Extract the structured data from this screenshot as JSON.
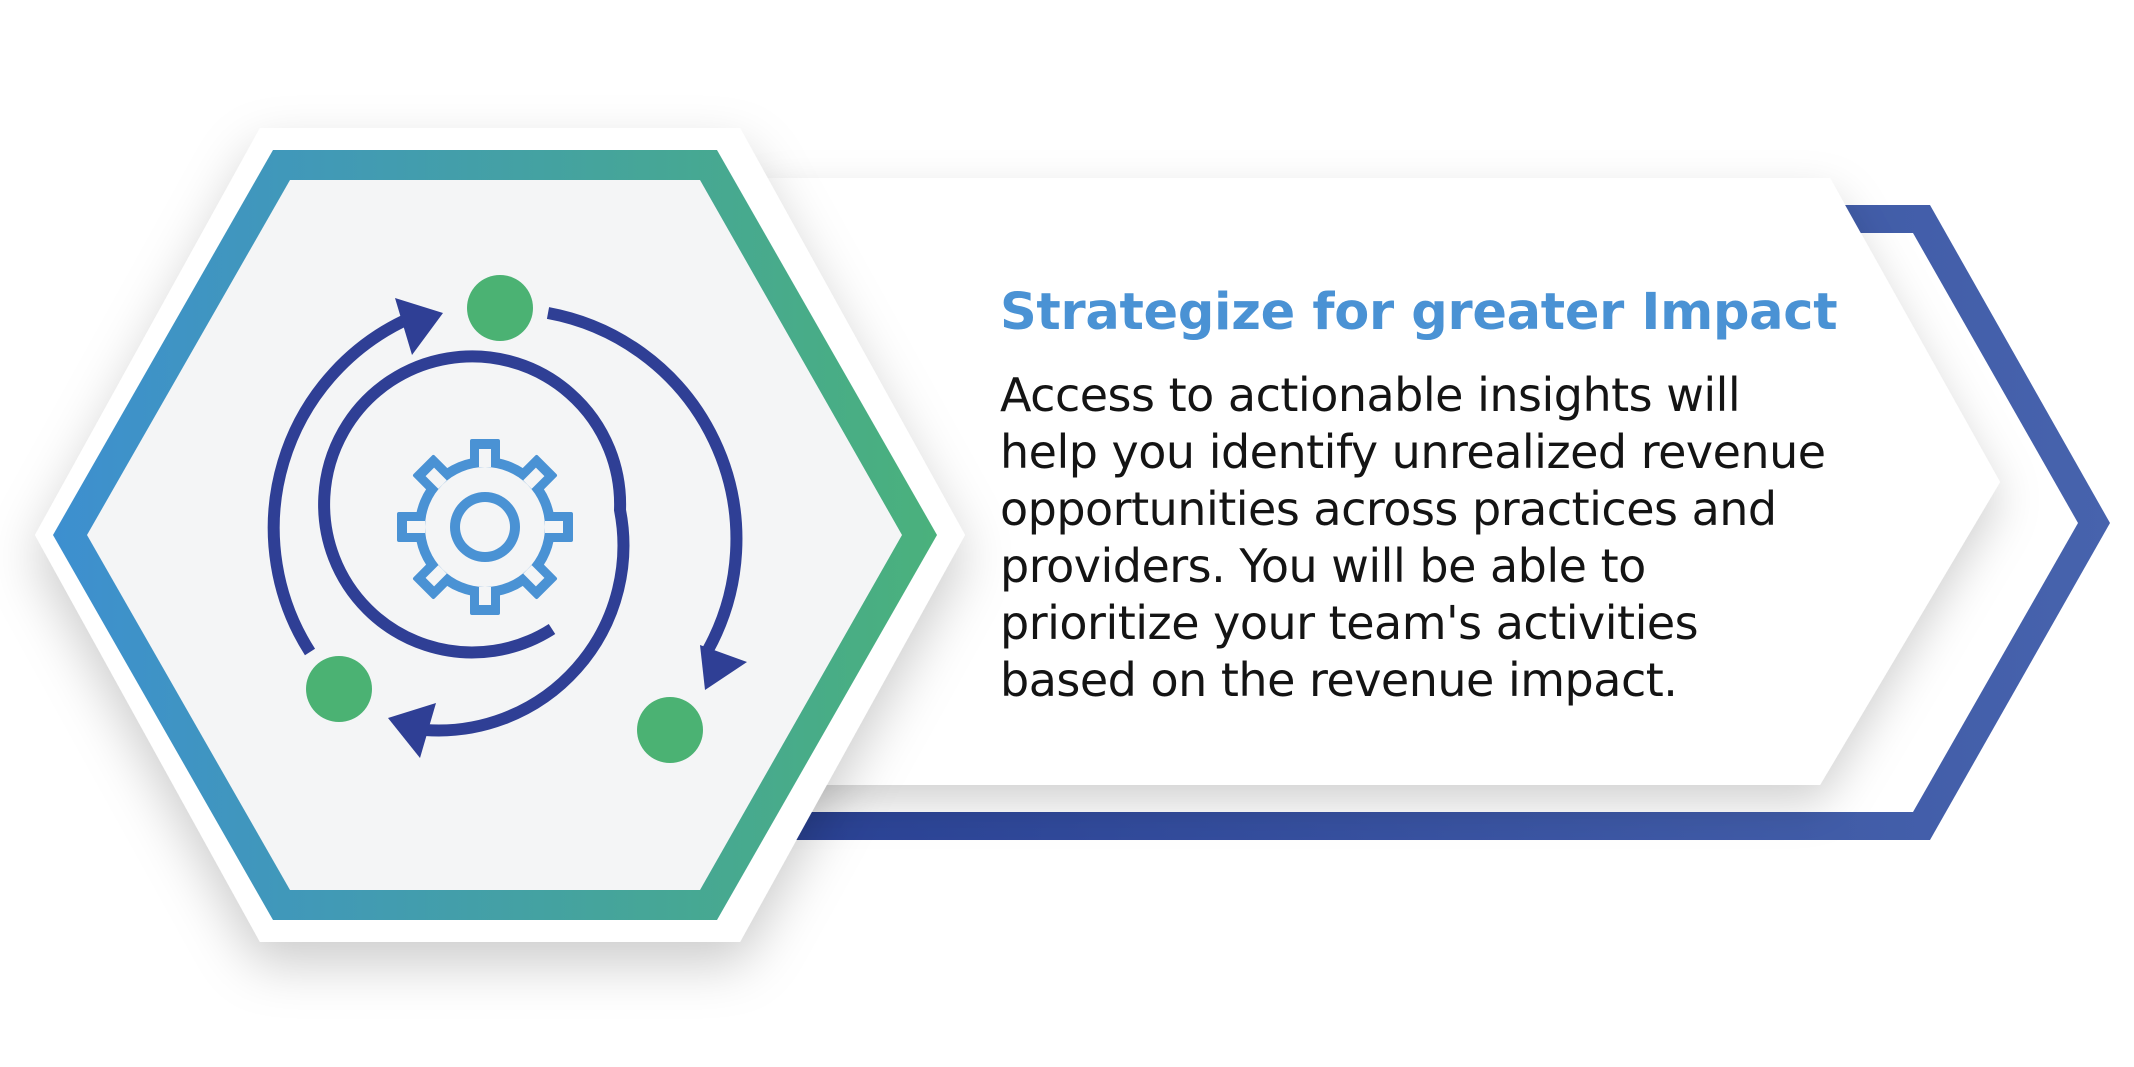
{
  "heading": "Strategize for greater Impact",
  "body_lines": [
    "Access to actionable insights will",
    "help you identify unrealized revenue",
    "opportunities across practices and",
    "providers. You will be able to",
    "prioritize your team's activities",
    "based on the revenue impact."
  ],
  "icons": {
    "main": "cycle-arrows-gear-icon"
  },
  "colors": {
    "heading": "#4a92d4",
    "body_text": "#141414",
    "hexagon_gradient_start": "#3d8fd0",
    "hexagon_gradient_end": "#4ab17c",
    "arrow_band_start": "#2a4295",
    "arrow_band_end": "#4763ad",
    "cycle_arrows": "#2f3f95",
    "gear": "#4a92d4",
    "dots": "#4bb273",
    "hexagon_fill": "#f4f5f6"
  }
}
